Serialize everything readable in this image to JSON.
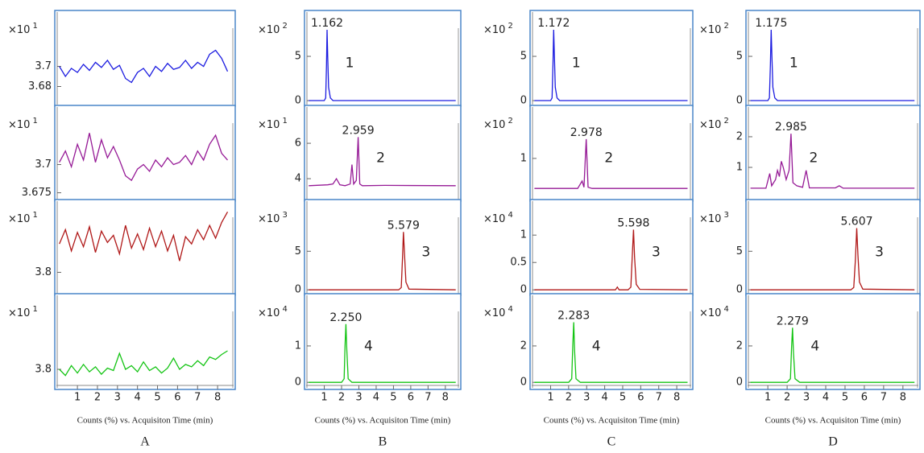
{
  "chart_data": [
    {
      "type": "line",
      "scale_label": "×10",
      "scale_exponent": "1",
      "xlim": [
        -0.05,
        8.8
      ],
      "ylim": [
        3.662,
        3.754
      ],
      "yticks": [
        3.68,
        3.7
      ],
      "series": [
        {
          "color": "#1c1ce0",
          "x": [
            0.1,
            0.4,
            0.7,
            1,
            1.3,
            1.6,
            1.9,
            2.2,
            2.5,
            2.8,
            3.1,
            3.4,
            3.7,
            4,
            4.3,
            4.6,
            4.9,
            5.2,
            5.5,
            5.8,
            6.1,
            6.4,
            6.7,
            7,
            7.3,
            7.6,
            7.9,
            8.2,
            8.5
          ],
          "values": [
            3.7,
            3.69,
            3.698,
            3.694,
            3.702,
            3.696,
            3.704,
            3.699,
            3.706,
            3.697,
            3.701,
            3.688,
            3.684,
            3.694,
            3.698,
            3.69,
            3.7,
            3.695,
            3.703,
            3.697,
            3.699,
            3.706,
            3.698,
            3.704,
            3.7,
            3.712,
            3.716,
            3.708,
            3.695
          ]
        }
      ]
    },
    {
      "type": "line",
      "scale_label": "×10",
      "scale_exponent": "1",
      "xlim": [
        -0.05,
        8.8
      ],
      "ylim": [
        3.669,
        3.751
      ],
      "yticks": [
        3.675,
        3.7
      ],
      "series": [
        {
          "color": "#961a96",
          "x": [
            0.1,
            0.4,
            0.7,
            1,
            1.3,
            1.6,
            1.9,
            2.2,
            2.5,
            2.8,
            3.1,
            3.4,
            3.7,
            4,
            4.3,
            4.6,
            4.9,
            5.2,
            5.5,
            5.8,
            6.1,
            6.4,
            6.7,
            7,
            7.3,
            7.6,
            7.9,
            8.2,
            8.5
          ],
          "values": [
            3.702,
            3.712,
            3.698,
            3.718,
            3.704,
            3.728,
            3.702,
            3.722,
            3.706,
            3.716,
            3.704,
            3.69,
            3.686,
            3.696,
            3.7,
            3.694,
            3.704,
            3.698,
            3.706,
            3.7,
            3.702,
            3.708,
            3.7,
            3.712,
            3.704,
            3.718,
            3.726,
            3.71,
            3.704
          ]
        }
      ]
    },
    {
      "type": "line",
      "scale_label": "×10",
      "scale_exponent": "1",
      "xlim": [
        -0.05,
        8.8
      ],
      "ylim": [
        3.77,
        3.9
      ],
      "yticks": [
        3.8
      ],
      "series": [
        {
          "color": "#b01818",
          "x": [
            0.1,
            0.4,
            0.7,
            1,
            1.3,
            1.6,
            1.9,
            2.2,
            2.5,
            2.8,
            3.1,
            3.4,
            3.7,
            4,
            4.3,
            4.6,
            4.9,
            5.2,
            5.5,
            5.8,
            6.1,
            6.4,
            6.7,
            7,
            7.3,
            7.6,
            7.9,
            8.2,
            8.5
          ],
          "values": [
            3.84,
            3.86,
            3.83,
            3.856,
            3.836,
            3.864,
            3.828,
            3.858,
            3.842,
            3.852,
            3.826,
            3.866,
            3.834,
            3.854,
            3.832,
            3.862,
            3.836,
            3.858,
            3.83,
            3.852,
            3.816,
            3.85,
            3.84,
            3.86,
            3.846,
            3.866,
            3.848,
            3.87,
            3.885
          ]
        }
      ]
    },
    {
      "type": "line",
      "scale_label": "×10",
      "scale_exponent": "1",
      "xlim": [
        -0.05,
        8.8
      ],
      "ylim": [
        3.77,
        3.92
      ],
      "yticks": [
        3.8
      ],
      "xticks": [
        1,
        2,
        3,
        4,
        5,
        6,
        7,
        8
      ],
      "xlabel": "Counts (%) vs. Acquisiton Time (min)",
      "panel_label": "A",
      "series": [
        {
          "color": "#14c414",
          "x": [
            0.1,
            0.4,
            0.7,
            1,
            1.3,
            1.6,
            1.9,
            2.2,
            2.5,
            2.8,
            3.1,
            3.4,
            3.7,
            4,
            4.3,
            4.6,
            4.9,
            5.2,
            5.5,
            5.8,
            6.1,
            6.4,
            6.7,
            7,
            7.3,
            7.6,
            7.9,
            8.2,
            8.5
          ],
          "values": [
            3.8,
            3.79,
            3.806,
            3.794,
            3.808,
            3.796,
            3.804,
            3.792,
            3.802,
            3.798,
            3.826,
            3.8,
            3.806,
            3.796,
            3.812,
            3.798,
            3.804,
            3.794,
            3.802,
            3.818,
            3.8,
            3.808,
            3.804,
            3.814,
            3.806,
            3.82,
            3.816,
            3.824,
            3.83
          ]
        }
      ]
    },
    {
      "type": "line",
      "scale_label": "×10",
      "scale_exponent": "2",
      "xlim": [
        -0.05,
        8.8
      ],
      "ylim": [
        -0.45,
        10
      ],
      "yticks": [
        0,
        5
      ],
      "annotations": [
        "1.162",
        "1"
      ],
      "series": [
        {
          "color": "#1c1ce0",
          "x": [
            0.1,
            1.0,
            1.08,
            1.13,
            1.162,
            1.2,
            1.25,
            1.35,
            1.5,
            8.6
          ],
          "values": [
            0,
            0,
            0.3,
            4,
            8,
            5,
            1.5,
            0.3,
            0,
            0
          ]
        }
      ]
    },
    {
      "type": "line",
      "scale_label": "×10",
      "scale_exponent": "1",
      "xlim": [
        -0.05,
        8.8
      ],
      "ylim": [
        2.82,
        8.05
      ],
      "yticks": [
        4,
        6
      ],
      "annotations": [
        "2.959",
        "2"
      ],
      "series": [
        {
          "color": "#961a96",
          "x": [
            0.1,
            1.2,
            1.5,
            1.7,
            1.9,
            2.2,
            2.5,
            2.6,
            2.7,
            2.85,
            2.959,
            3.05,
            3.2,
            4.5,
            8.6
          ],
          "values": [
            3.6,
            3.65,
            3.7,
            4.0,
            3.65,
            3.6,
            3.7,
            4.8,
            3.7,
            3.9,
            6.35,
            3.7,
            3.6,
            3.62,
            3.6
          ]
        }
      ]
    },
    {
      "type": "line",
      "scale_label": "×10",
      "scale_exponent": "3",
      "xlim": [
        -0.05,
        8.8
      ],
      "ylim": [
        -0.5,
        11.5
      ],
      "yticks": [
        0,
        5
      ],
      "annotations": [
        "5.579",
        "3"
      ],
      "series": [
        {
          "color": "#b01818",
          "x": [
            0.1,
            5.3,
            5.45,
            5.52,
            5.579,
            5.64,
            5.72,
            5.9,
            8.6
          ],
          "values": [
            0,
            0,
            0.3,
            4,
            7.5,
            4.5,
            1,
            0.1,
            0
          ]
        }
      ]
    },
    {
      "type": "line",
      "scale_label": "×10",
      "scale_exponent": "4",
      "xlim": [
        -0.05,
        8.8
      ],
      "ylim": [
        -0.15,
        2.39
      ],
      "yticks": [
        0,
        1
      ],
      "annotations": [
        "2.250",
        "4"
      ],
      "xticks": [
        1,
        2,
        3,
        4,
        5,
        6,
        7,
        8
      ],
      "xlabel": "Counts (%) vs. Acquisiton Time (min)",
      "panel_label": "B",
      "series": [
        {
          "color": "#14c414",
          "x": [
            0.1,
            2.0,
            2.15,
            2.2,
            2.25,
            2.3,
            2.38,
            2.6,
            8.6
          ],
          "values": [
            0,
            0,
            0.1,
            1.0,
            1.6,
            0.9,
            0.1,
            0,
            0
          ]
        }
      ]
    },
    {
      "type": "line",
      "scale_label": "×10",
      "scale_exponent": "2",
      "xlim": [
        -0.05,
        8.8
      ],
      "ylim": [
        -0.45,
        10
      ],
      "yticks": [
        0,
        5
      ],
      "annotations": [
        "1.172",
        "1"
      ],
      "series": [
        {
          "color": "#1c1ce0",
          "x": [
            0.1,
            1.0,
            1.08,
            1.13,
            1.172,
            1.21,
            1.26,
            1.36,
            1.5,
            8.6
          ],
          "values": [
            0,
            0,
            0.3,
            4,
            8,
            5,
            1.5,
            0.3,
            0,
            0
          ]
        }
      ]
    },
    {
      "type": "line",
      "scale_label": "×10",
      "scale_exponent": "2",
      "xlim": [
        -0.05,
        8.8
      ],
      "ylim": [
        0,
        2.25
      ],
      "yticks": [
        1
      ],
      "annotations": [
        "2.978",
        "2"
      ],
      "series": [
        {
          "color": "#961a96",
          "x": [
            0.1,
            2.5,
            2.75,
            2.85,
            2.978,
            3.08,
            3.3,
            8.6
          ],
          "values": [
            0.27,
            0.27,
            0.45,
            0.3,
            1.47,
            0.3,
            0.27,
            0.27
          ]
        }
      ]
    },
    {
      "type": "line",
      "scale_label": "×10",
      "scale_exponent": "4",
      "xlim": [
        -0.05,
        8.8
      ],
      "ylim": [
        -0.07,
        1.62
      ],
      "yticks": [
        0,
        0.5,
        1
      ],
      "annotations": [
        "5.598",
        "3"
      ],
      "series": [
        {
          "color": "#b01818",
          "x": [
            0.1,
            4.6,
            4.7,
            4.8,
            5.3,
            5.45,
            5.53,
            5.598,
            5.66,
            5.75,
            5.95,
            8.6
          ],
          "values": [
            0,
            0,
            0.05,
            0,
            0,
            0.05,
            0.6,
            1.1,
            0.6,
            0.1,
            0.01,
            0
          ]
        }
      ]
    },
    {
      "type": "line",
      "scale_label": "×10",
      "scale_exponent": "4",
      "xlim": [
        -0.05,
        8.8
      ],
      "ylim": [
        -0.3,
        4.78
      ],
      "yticks": [
        0,
        2
      ],
      "annotations": [
        "2.283",
        "4"
      ],
      "xticks": [
        1,
        2,
        3,
        4,
        5,
        6,
        7,
        8
      ],
      "xlabel": "Counts (%) vs. Acquisiton Time (min)",
      "panel_label": "C",
      "series": [
        {
          "color": "#14c414",
          "x": [
            0.1,
            2.0,
            2.17,
            2.23,
            2.283,
            2.33,
            2.41,
            2.65,
            8.6
          ],
          "values": [
            0,
            0,
            0.2,
            2.0,
            3.3,
            1.8,
            0.2,
            0,
            0
          ]
        }
      ]
    },
    {
      "type": "line",
      "scale_label": "×10",
      "scale_exponent": "2",
      "xlim": [
        -0.05,
        8.8
      ],
      "ylim": [
        -0.45,
        10
      ],
      "yticks": [
        0,
        5
      ],
      "annotations": [
        "1.175",
        "1"
      ],
      "series": [
        {
          "color": "#1c1ce0",
          "x": [
            0.1,
            1.0,
            1.08,
            1.13,
            1.175,
            1.21,
            1.26,
            1.36,
            1.5,
            8.6
          ],
          "values": [
            0,
            0,
            0.3,
            4,
            8,
            5,
            1.5,
            0.3,
            0,
            0
          ]
        }
      ]
    },
    {
      "type": "line",
      "scale_label": "×10",
      "scale_exponent": "2",
      "xlim": [
        -0.05,
        8.8
      ],
      "ylim": [
        -0.05,
        2.97
      ],
      "yticks": [
        1,
        2
      ],
      "annotations": [
        "2.985",
        "2"
      ],
      "series": [
        {
          "color": "#961a96",
          "x": [
            0.1,
            0.9,
            1.1,
            1.2,
            1.4,
            1.5,
            1.6,
            1.7,
            1.8,
            1.95,
            2.1,
            2.2,
            2.3,
            2.5,
            2.8,
            2.985,
            3.15,
            4.5,
            4.7,
            4.9,
            8.6
          ],
          "values": [
            0.32,
            0.32,
            0.8,
            0.4,
            0.6,
            0.9,
            0.7,
            1.2,
            1.0,
            0.6,
            0.9,
            2.1,
            0.5,
            0.4,
            0.35,
            0.9,
            0.33,
            0.33,
            0.4,
            0.32,
            0.32
          ]
        }
      ]
    },
    {
      "type": "line",
      "scale_label": "×10",
      "scale_exponent": "3",
      "xlim": [
        -0.05,
        8.8
      ],
      "ylim": [
        -0.5,
        11.5
      ],
      "yticks": [
        0,
        5
      ],
      "annotations": [
        "5.607",
        "3"
      ],
      "series": [
        {
          "color": "#b01818",
          "x": [
            0.1,
            5.3,
            5.45,
            5.54,
            5.607,
            5.67,
            5.75,
            5.92,
            8.6
          ],
          "values": [
            0,
            0,
            0.3,
            4,
            8,
            4.5,
            1,
            0.1,
            0
          ]
        }
      ]
    },
    {
      "type": "line",
      "scale_label": "×10",
      "scale_exponent": "4",
      "xlim": [
        -0.05,
        8.8
      ],
      "ylim": [
        -0.3,
        4.78
      ],
      "yticks": [
        0,
        2
      ],
      "annotations": [
        "2.279",
        "4"
      ],
      "xticks": [
        1,
        2,
        3,
        4,
        5,
        6,
        7,
        8
      ],
      "xlabel": "Counts (%) vs. Acquisiton Time (min)",
      "panel_label": "D",
      "series": [
        {
          "color": "#14c414",
          "x": [
            0.1,
            2.0,
            2.17,
            2.23,
            2.279,
            2.33,
            2.41,
            2.65,
            8.6
          ],
          "values": [
            0,
            0,
            0.2,
            1.9,
            3.0,
            1.6,
            0.2,
            0,
            0
          ]
        }
      ]
    }
  ]
}
